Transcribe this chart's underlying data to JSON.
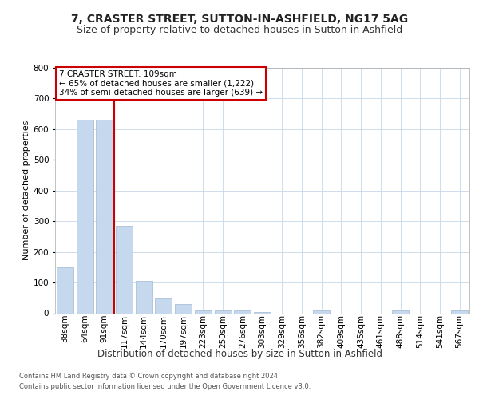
{
  "title": "7, CRASTER STREET, SUTTON-IN-ASHFIELD, NG17 5AG",
  "subtitle": "Size of property relative to detached houses in Sutton in Ashfield",
  "xlabel": "Distribution of detached houses by size in Sutton in Ashfield",
  "ylabel": "Number of detached properties",
  "categories": [
    "38sqm",
    "64sqm",
    "91sqm",
    "117sqm",
    "144sqm",
    "170sqm",
    "197sqm",
    "223sqm",
    "250sqm",
    "276sqm",
    "303sqm",
    "329sqm",
    "356sqm",
    "382sqm",
    "409sqm",
    "435sqm",
    "461sqm",
    "488sqm",
    "514sqm",
    "541sqm",
    "567sqm"
  ],
  "values": [
    150,
    630,
    630,
    285,
    105,
    48,
    30,
    10,
    10,
    8,
    5,
    0,
    0,
    8,
    0,
    0,
    0,
    8,
    0,
    0,
    8
  ],
  "bar_color": "#c5d8ed",
  "bar_edge_color": "#a0b8d0",
  "vline_x_index": 2,
  "vline_color": "#cc0000",
  "annotation_line1": "7 CRASTER STREET: 109sqm",
  "annotation_line2": "← 65% of detached houses are smaller (1,222)",
  "annotation_line3": "34% of semi-detached houses are larger (639) →",
  "annotation_box_color": "#cc0000",
  "ylim": [
    0,
    800
  ],
  "yticks": [
    0,
    100,
    200,
    300,
    400,
    500,
    600,
    700,
    800
  ],
  "footer_line1": "Contains HM Land Registry data © Crown copyright and database right 2024.",
  "footer_line2": "Contains public sector information licensed under the Open Government Licence v3.0.",
  "title_fontsize": 10,
  "subtitle_fontsize": 9,
  "xlabel_fontsize": 8.5,
  "ylabel_fontsize": 8,
  "tick_fontsize": 7.5,
  "annotation_fontsize": 7.5,
  "footer_fontsize": 6,
  "background_color": "#ffffff",
  "grid_color": "#c8d8e8",
  "title_color": "#222222",
  "text_color": "#333333",
  "footer_color": "#555555"
}
